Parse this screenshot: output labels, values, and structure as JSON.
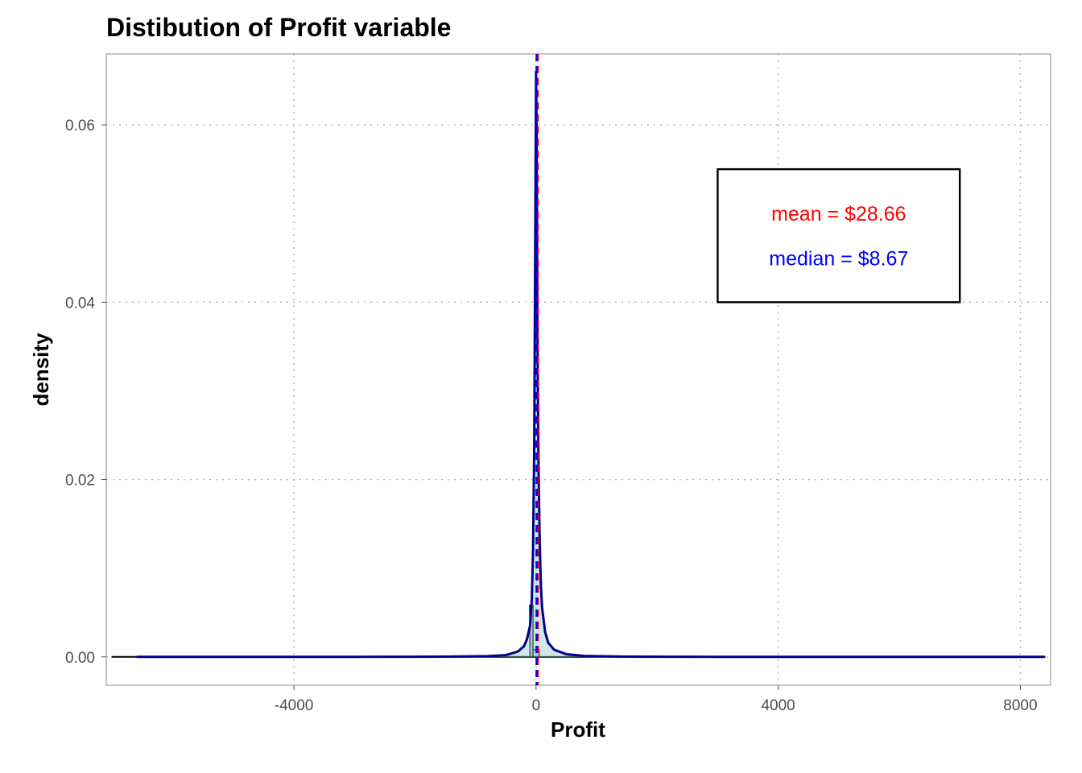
{
  "chart_data": {
    "type": "area",
    "title": "Distibution of Profit variable",
    "xlabel": "Profit",
    "ylabel": "density",
    "xlim": [
      -7100,
      8500
    ],
    "ylim": [
      -0.0032,
      0.068
    ],
    "x_ticks": [
      -4000,
      0,
      4000,
      8000
    ],
    "x_tick_labels": [
      "-4000",
      "0",
      "4000",
      "8000"
    ],
    "y_ticks": [
      0.0,
      0.02,
      0.04,
      0.06
    ],
    "y_tick_labels": [
      "0.00",
      "0.02",
      "0.04",
      "0.06"
    ],
    "grid": true,
    "histogram": {
      "fill": "#a9d3d8",
      "outline": "#000000",
      "bins": [
        {
          "x0": -7000,
          "x1": -100,
          "density": 0.0
        },
        {
          "x0": -100,
          "x1": -50,
          "density": 0.0058
        },
        {
          "x0": -50,
          "x1": 50,
          "density": 0.0008
        },
        {
          "x0": 50,
          "x1": 8400,
          "density": 0.0
        }
      ]
    },
    "density_curve": {
      "color": "#00008b",
      "x": [
        -6600,
        -3000,
        -1500,
        -800,
        -500,
        -300,
        -200,
        -150,
        -100,
        -70,
        -50,
        -30,
        -15,
        0,
        10,
        20,
        40,
        60,
        80,
        100,
        150,
        200,
        300,
        500,
        800,
        1500,
        3000,
        8400
      ],
      "y": [
        0.0,
        0.0,
        2e-05,
        8e-05,
        0.0002,
        0.0006,
        0.0012,
        0.002,
        0.0035,
        0.0065,
        0.012,
        0.024,
        0.045,
        0.066,
        0.058,
        0.04,
        0.022,
        0.013,
        0.008,
        0.0055,
        0.0028,
        0.0016,
        0.0008,
        0.0003,
        0.0001,
        2e-05,
        0.0,
        0.0
      ]
    },
    "vlines": [
      {
        "name": "mean",
        "x": 28.66,
        "color": "#ff0000",
        "style": "dashed"
      },
      {
        "name": "median",
        "x": 8.67,
        "color": "#0000ff",
        "style": "dashed"
      }
    ],
    "annotation": {
      "mean_text": "mean = $28.66",
      "median_text": "median = $8.67",
      "mean_color": "#ff0000",
      "median_color": "#0000ff",
      "box_x": [
        3000,
        7000
      ],
      "box_y": [
        0.04,
        0.055
      ],
      "mean_text_y": 0.05,
      "median_text_y": 0.045
    }
  }
}
